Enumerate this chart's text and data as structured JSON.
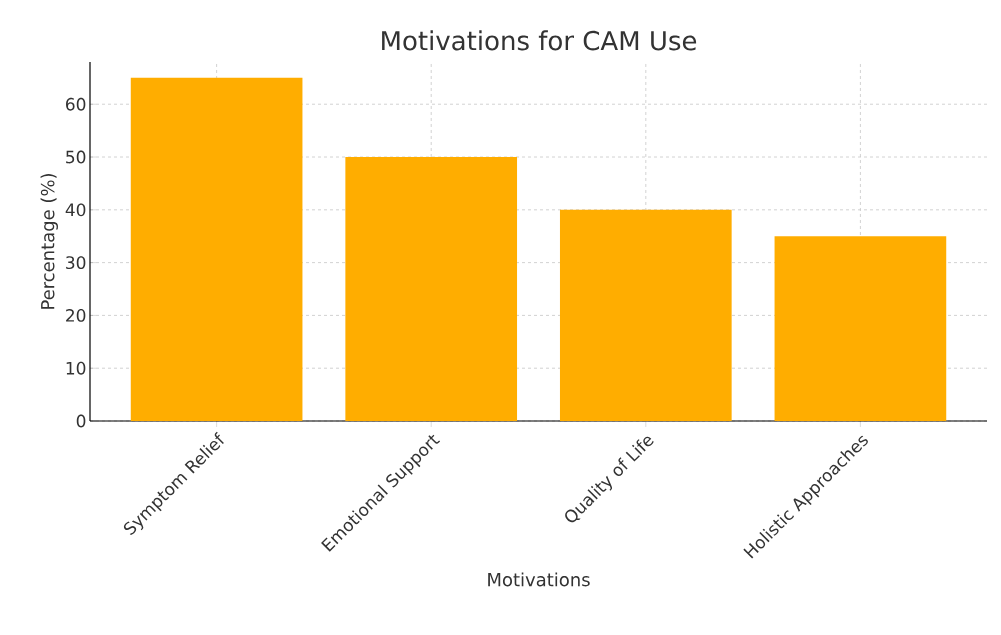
{
  "chart_data": {
    "type": "bar",
    "title": "Motivations for CAM Use",
    "xlabel": "Motivations",
    "ylabel": "Percentage (%)",
    "categories": [
      "Symptom Relief",
      "Emotional Support",
      "Quality of Life",
      "Holistic Approaches"
    ],
    "values": [
      65,
      50,
      40,
      35
    ],
    "color": "#ffad00",
    "ylim": [
      0,
      68
    ],
    "yticks": [
      0,
      10,
      20,
      30,
      40,
      50,
      60
    ],
    "grid": true
  }
}
